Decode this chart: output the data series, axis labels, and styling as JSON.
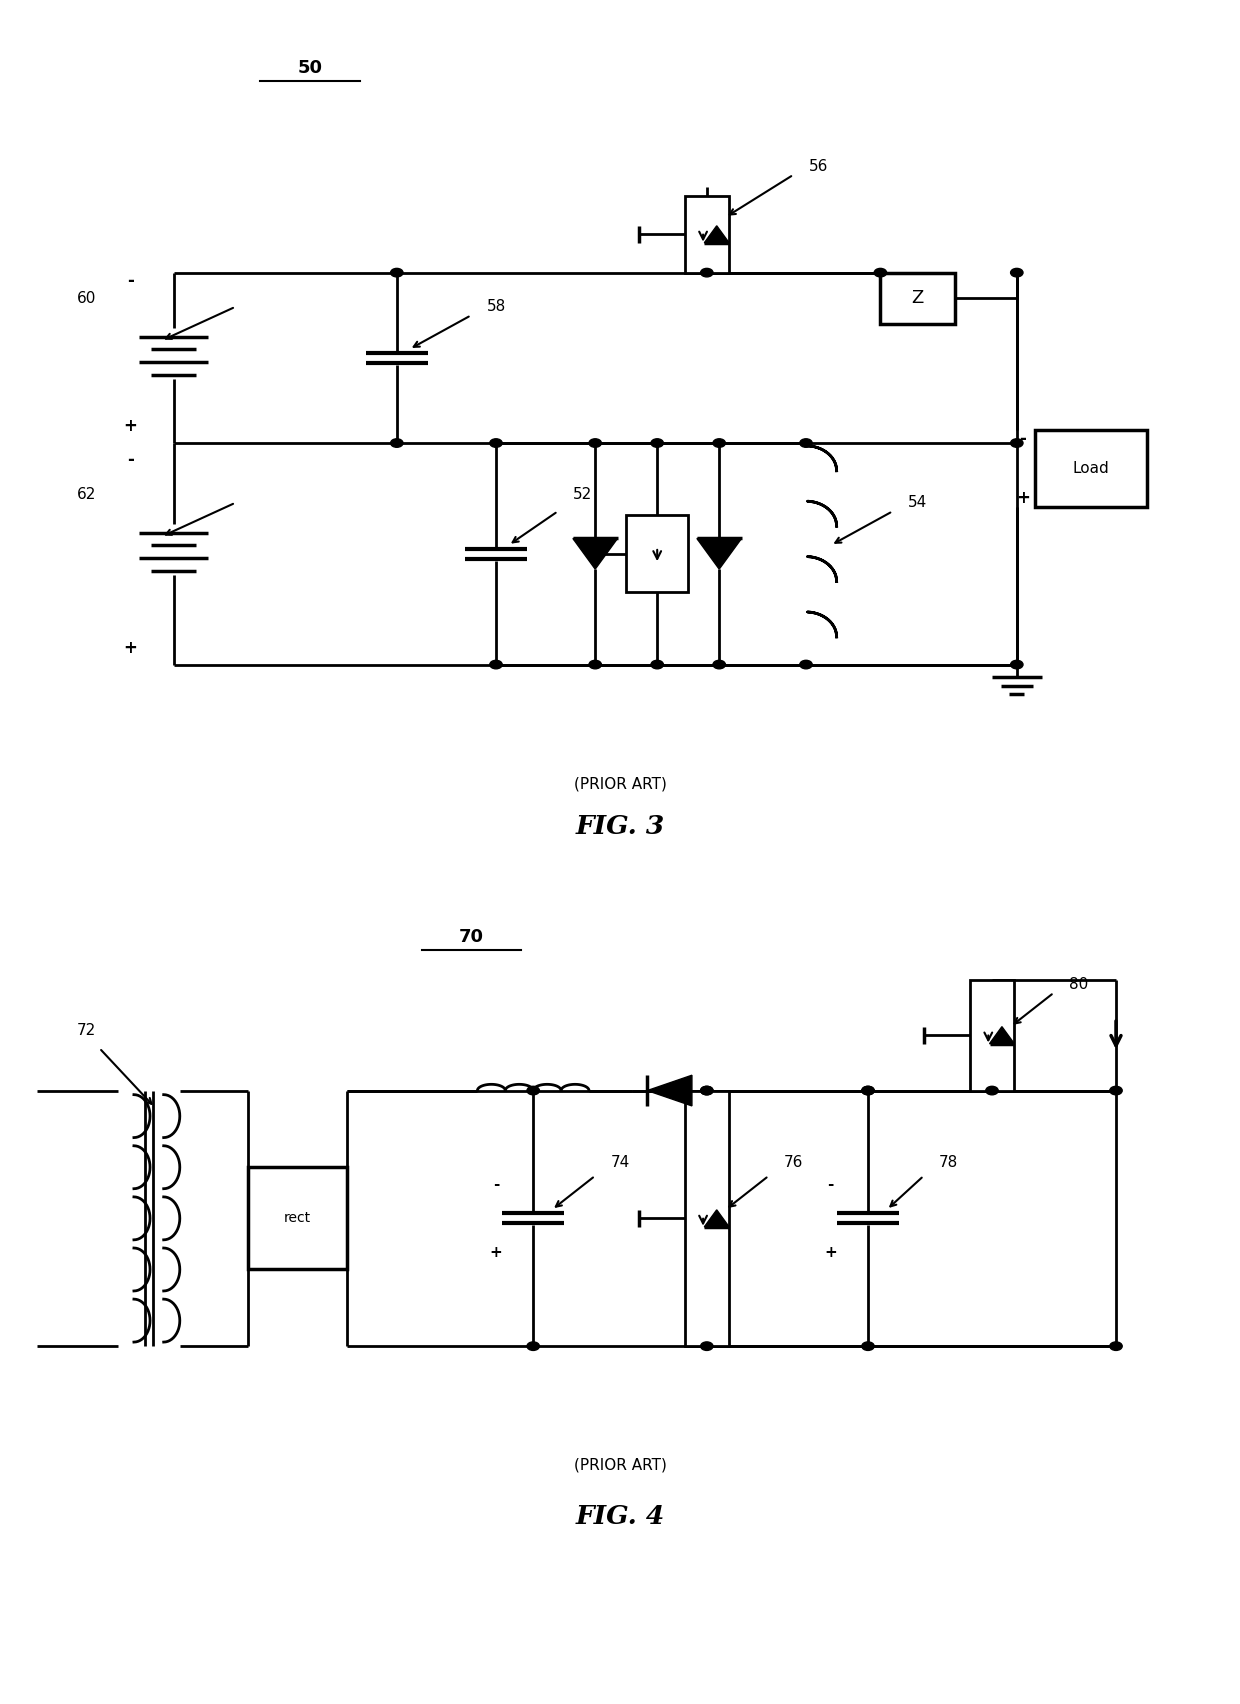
{
  "fig_width": 12.4,
  "fig_height": 17.04,
  "bg_color": "#ffffff",
  "line_color": "#000000",
  "lw": 2.0,
  "fig3_ref": "50",
  "fig3_caption": "(PRIOR ART)",
  "fig3_title": "FIG. 3",
  "fig4_ref": "70",
  "fig4_caption": "(PRIOR ART)",
  "fig4_title": "FIG. 4"
}
